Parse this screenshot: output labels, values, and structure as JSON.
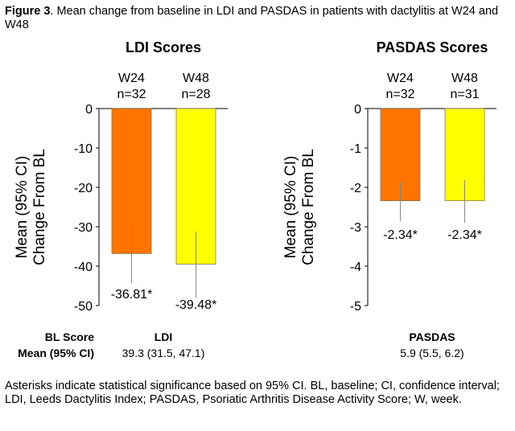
{
  "caption": {
    "label": "Figure 3",
    "text": ". Mean change from baseline in LDI and PASDAS in patients with dactylitis at W24 and W48"
  },
  "footnote": "Asterisks indicate statistical significance based on 95% CI. BL, baseline; CI, confidence interval; LDI, Leeds Dactylitis Index; PASDAS, Psoriatic Arthritis Disease Activity Score; W, week.",
  "bl_table": {
    "row1_label": "BL Score",
    "row2_label": "Mean (95% CI)",
    "ldi_name": "LDI",
    "ldi_value": "39.3 (31.5, 47.1)",
    "pasdas_name": "PASDAS",
    "pasdas_value": "5.9 (5.5, 6.2)"
  },
  "colors": {
    "W24": "#FF7500",
    "W48": "#FFFF00"
  },
  "chart_data": [
    {
      "type": "bar",
      "title": "LDI Scores",
      "ylabel": "Mean (95% CI) Change From BL",
      "ylim": [
        -50,
        0
      ],
      "yticks": [
        0,
        -10,
        -20,
        -30,
        -40,
        -50
      ],
      "ytick_labels": [
        "0",
        "-10",
        "-20",
        "-30",
        "-40",
        "-50"
      ],
      "categories": [
        "W24",
        "W48"
      ],
      "n_labels": [
        "n=32",
        "n=28"
      ],
      "values": [
        -36.81,
        -39.48
      ],
      "ci": [
        [
          -44.4,
          -29.3
        ],
        [
          -48.0,
          -31.2
        ]
      ],
      "data_labels": [
        "-36.81*",
        "-39.48*"
      ]
    },
    {
      "type": "bar",
      "title": "PASDAS Scores",
      "ylabel": "Mean (95% CI) Change From BL",
      "ylim": [
        -5,
        0
      ],
      "yticks": [
        0,
        -1,
        -2,
        -3,
        -4,
        -5
      ],
      "ytick_labels": [
        "0",
        "-1",
        "-2",
        "-3",
        "-4",
        "-5"
      ],
      "categories": [
        "W24",
        "W48"
      ],
      "n_labels": [
        "n=32",
        "n=31"
      ],
      "values": [
        -2.34,
        -2.34
      ],
      "ci": [
        [
          -2.86,
          -1.86
        ],
        [
          -2.9,
          -1.82
        ]
      ],
      "data_labels": [
        "-2.34*",
        "-2.34*"
      ]
    }
  ]
}
